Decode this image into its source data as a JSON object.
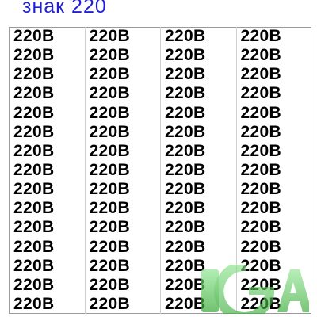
{
  "title": "знак 220",
  "cell_label": "220В",
  "columns": 4,
  "rows": 15,
  "colors": {
    "title": "#1f1fd6",
    "label": "#000000",
    "watermark": "#3cc53c"
  },
  "watermark": {
    "text": "1G A"
  },
  "site_caption": ""
}
